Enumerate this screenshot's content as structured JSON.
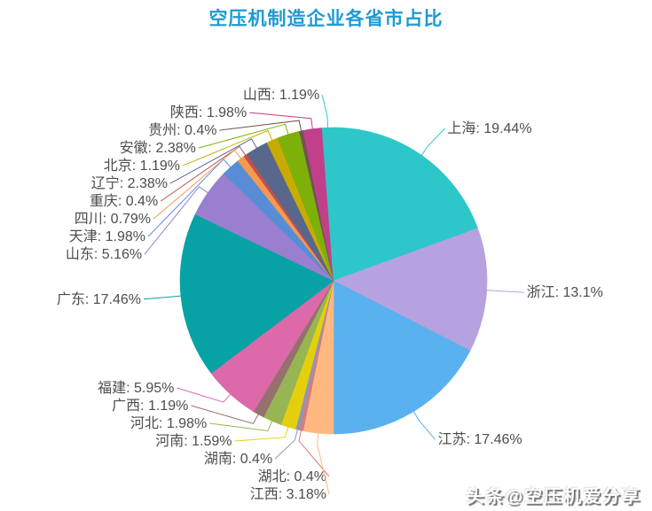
{
  "title": {
    "text": "空压机制造企业各省市占比",
    "color": "#1e9ad2"
  },
  "watermark": {
    "text": "头条@空压机爱分享"
  },
  "chart_data": {
    "type": "pie",
    "title": "空压机制造企业各省市占比",
    "unit": "%",
    "label_format": "{name}: {value}%",
    "start_angle_deg": 90,
    "direction": "clockwise",
    "legend_position": "none",
    "label_text_color": "#4d4d4d",
    "slices": [
      {
        "name": "上海",
        "value": 19.44,
        "color": "#2ec7c9"
      },
      {
        "name": "浙江",
        "value": 13.1,
        "color": "#b6a2de"
      },
      {
        "name": "江苏",
        "value": 17.46,
        "color": "#5ab1ef"
      },
      {
        "name": "江西",
        "value": 3.18,
        "color": "#ffb980"
      },
      {
        "name": "湖北",
        "value": 0.4,
        "color": "#d87a80"
      },
      {
        "name": "湖南",
        "value": 0.4,
        "color": "#8d98b3"
      },
      {
        "name": "河南",
        "value": 1.59,
        "color": "#e5cf0d"
      },
      {
        "name": "河北",
        "value": 1.98,
        "color": "#97b552"
      },
      {
        "name": "广西",
        "value": 1.19,
        "color": "#95706d"
      },
      {
        "name": "福建",
        "value": 5.95,
        "color": "#dc69aa"
      },
      {
        "name": "广东",
        "value": 17.46,
        "color": "#07a2a4"
      },
      {
        "name": "山东",
        "value": 5.16,
        "color": "#9a7fd1"
      },
      {
        "name": "天津",
        "value": 1.98,
        "color": "#588dd5"
      },
      {
        "name": "四川",
        "value": 0.79,
        "color": "#f5994e"
      },
      {
        "name": "重庆",
        "value": 0.4,
        "color": "#c05050"
      },
      {
        "name": "辽宁",
        "value": 2.38,
        "color": "#59678c"
      },
      {
        "name": "北京",
        "value": 1.19,
        "color": "#c9ab00"
      },
      {
        "name": "安徽",
        "value": 2.38,
        "color": "#7eb00a"
      },
      {
        "name": "贵州",
        "value": 0.4,
        "color": "#6f5553"
      },
      {
        "name": "陕西",
        "value": 1.98,
        "color": "#c14089"
      },
      {
        "name": "山西",
        "value": 1.19,
        "color": "#2ec7c9"
      }
    ]
  }
}
